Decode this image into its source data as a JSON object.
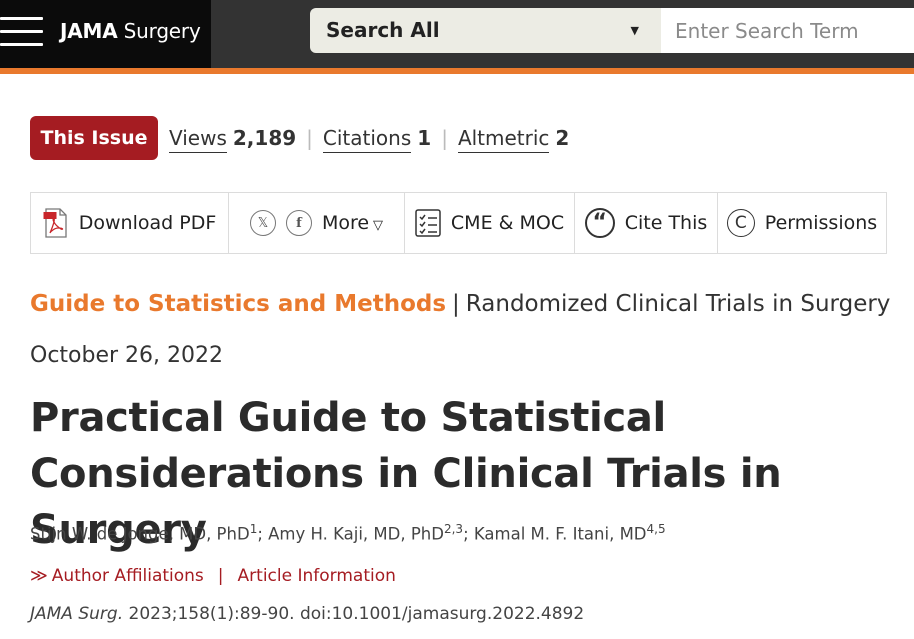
{
  "header": {
    "logo_bold": "JAMA",
    "logo_rest": " Surgery",
    "search_scope": "Search All",
    "search_placeholder": "Enter Search Term"
  },
  "issue_row": {
    "badge": "This Issue",
    "views_label": "Views",
    "views_value": "2,189",
    "citations_label": "Citations",
    "citations_value": "1",
    "altmetric_label": "Altmetric",
    "altmetric_value": "2"
  },
  "toolbar": {
    "download_pdf": "Download PDF",
    "more": "More",
    "cme_moc": "CME & MOC",
    "cite_this": "Cite This",
    "permissions": "Permissions"
  },
  "article": {
    "category": "Guide to Statistics and Methods",
    "subcategory": "Randomized Clinical Trials in Surgery",
    "date": "October 26, 2022",
    "title": "Practical Guide to Statistical Considerations in Clinical Trials in Surgery",
    "authors": [
      {
        "name": "Stijn W. de Jonge, MD, PhD",
        "aff": "1"
      },
      {
        "name": "Amy H. Kaji, MD, PhD",
        "aff": "2,3"
      },
      {
        "name": "Kamal M. F. Itani, MD",
        "aff": "4,5"
      }
    ],
    "author_affiliations": "Author Affiliations",
    "article_information": "Article Information",
    "journal": "JAMA Surg.",
    "citation_rest": " 2023;158(1):89-90. doi:10.1001/jamasurg.2022.4892"
  },
  "colors": {
    "accent_orange": "#e9792d",
    "badge_red": "#a51c22",
    "topbar": "#333333"
  }
}
